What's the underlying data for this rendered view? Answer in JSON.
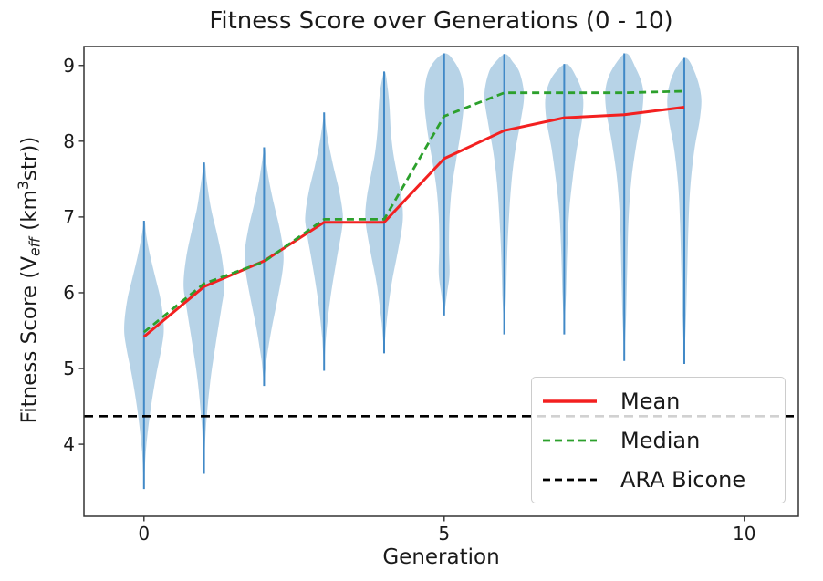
{
  "chart_data": {
    "type": "violin",
    "title": "Fitness Score over Generations (0 - 10)",
    "xlabel": "Generation",
    "ylabel": "Fitness Score (V_eff (km^3 str))",
    "ylabel_parts": [
      {
        "text": "Fitness Score (V"
      },
      {
        "text": "eff",
        "style": "sub"
      },
      {
        "text": " (km",
        "style": ""
      },
      {
        "text": "3",
        "style": "sup"
      },
      {
        "text": "str))",
        "style": ""
      }
    ],
    "x": [
      0,
      1,
      2,
      3,
      4,
      5,
      6,
      7,
      8,
      9
    ],
    "xlim": [
      -1.0,
      10.9
    ],
    "ylim": [
      3.05,
      9.25
    ],
    "x_ticks": [
      0,
      5,
      10
    ],
    "y_ticks": [
      4,
      5,
      6,
      7,
      8,
      9
    ],
    "grid": false,
    "legend_location": "lower right",
    "series": [
      {
        "name": "Mean",
        "style": "solid",
        "color": "#f32020",
        "values": [
          5.42,
          6.08,
          6.42,
          6.93,
          6.93,
          7.77,
          8.14,
          8.31,
          8.35,
          8.45
        ]
      },
      {
        "name": "Median",
        "style": "dashed",
        "color": "#2ca02c",
        "values": [
          5.48,
          6.12,
          6.41,
          6.97,
          6.97,
          8.33,
          8.64,
          8.64,
          8.64,
          8.66
        ]
      },
      {
        "name": "ARA Bicone",
        "style": "dashed",
        "color": "#000000",
        "value": 4.37
      }
    ],
    "violins": [
      {
        "gen": 0,
        "min": 3.41,
        "max": 6.95,
        "profile": [
          [
            3.41,
            0
          ],
          [
            3.9,
            0.03
          ],
          [
            4.4,
            0.1
          ],
          [
            4.9,
            0.2
          ],
          [
            5.3,
            0.3
          ],
          [
            5.55,
            0.33
          ],
          [
            5.9,
            0.28
          ],
          [
            6.2,
            0.19
          ],
          [
            6.5,
            0.1
          ],
          [
            6.75,
            0.04
          ],
          [
            6.95,
            0.01
          ]
        ]
      },
      {
        "gen": 1,
        "min": 3.61,
        "max": 7.72,
        "profile": [
          [
            3.61,
            0
          ],
          [
            4.2,
            0.03
          ],
          [
            4.8,
            0.1
          ],
          [
            5.3,
            0.19
          ],
          [
            5.8,
            0.29
          ],
          [
            6.1,
            0.34
          ],
          [
            6.45,
            0.3
          ],
          [
            6.8,
            0.21
          ],
          [
            7.1,
            0.12
          ],
          [
            7.45,
            0.05
          ],
          [
            7.72,
            0.01
          ]
        ]
      },
      {
        "gen": 2,
        "min": 4.77,
        "max": 7.92,
        "profile": [
          [
            4.77,
            0
          ],
          [
            5.1,
            0.04
          ],
          [
            5.5,
            0.12
          ],
          [
            5.9,
            0.22
          ],
          [
            6.3,
            0.31
          ],
          [
            6.55,
            0.32
          ],
          [
            6.85,
            0.26
          ],
          [
            7.15,
            0.17
          ],
          [
            7.45,
            0.09
          ],
          [
            7.7,
            0.04
          ],
          [
            7.92,
            0.01
          ]
        ]
      },
      {
        "gen": 3,
        "min": 4.97,
        "max": 8.38,
        "profile": [
          [
            4.97,
            0
          ],
          [
            5.4,
            0.03
          ],
          [
            5.9,
            0.1
          ],
          [
            6.4,
            0.2
          ],
          [
            6.85,
            0.3
          ],
          [
            7.05,
            0.31
          ],
          [
            7.35,
            0.25
          ],
          [
            7.65,
            0.16
          ],
          [
            7.95,
            0.08
          ],
          [
            8.2,
            0.03
          ],
          [
            8.38,
            0.01
          ]
        ]
      },
      {
        "gen": 4,
        "min": 5.2,
        "max": 8.92,
        "profile": [
          [
            5.2,
            0
          ],
          [
            5.6,
            0.04
          ],
          [
            6.1,
            0.12
          ],
          [
            6.55,
            0.23
          ],
          [
            6.95,
            0.31
          ],
          [
            7.25,
            0.29
          ],
          [
            7.55,
            0.22
          ],
          [
            7.85,
            0.15
          ],
          [
            8.15,
            0.11
          ],
          [
            8.45,
            0.09
          ],
          [
            8.7,
            0.06
          ],
          [
            8.92,
            0.01
          ]
        ]
      },
      {
        "gen": 5,
        "min": 5.7,
        "max": 9.16,
        "profile": [
          [
            5.7,
            0
          ],
          [
            6.0,
            0.05
          ],
          [
            6.25,
            0.09
          ],
          [
            6.6,
            0.08
          ],
          [
            7.0,
            0.09
          ],
          [
            7.4,
            0.13
          ],
          [
            7.8,
            0.21
          ],
          [
            8.2,
            0.29
          ],
          [
            8.55,
            0.33
          ],
          [
            8.85,
            0.29
          ],
          [
            9.05,
            0.17
          ],
          [
            9.16,
            0.02
          ]
        ]
      },
      {
        "gen": 6,
        "min": 5.45,
        "max": 9.15,
        "profile": [
          [
            5.45,
            0
          ],
          [
            5.95,
            0.03
          ],
          [
            6.5,
            0.05
          ],
          [
            7.0,
            0.08
          ],
          [
            7.45,
            0.12
          ],
          [
            7.85,
            0.18
          ],
          [
            8.25,
            0.27
          ],
          [
            8.6,
            0.33
          ],
          [
            8.9,
            0.26
          ],
          [
            9.05,
            0.14
          ],
          [
            9.15,
            0.02
          ]
        ]
      },
      {
        "gen": 7,
        "min": 5.45,
        "max": 9.02,
        "profile": [
          [
            5.45,
            0
          ],
          [
            6.0,
            0.03
          ],
          [
            6.55,
            0.05
          ],
          [
            7.05,
            0.08
          ],
          [
            7.5,
            0.14
          ],
          [
            7.9,
            0.21
          ],
          [
            8.3,
            0.3
          ],
          [
            8.6,
            0.31
          ],
          [
            8.85,
            0.2
          ],
          [
            9.02,
            0.03
          ]
        ]
      },
      {
        "gen": 8,
        "min": 5.1,
        "max": 9.16,
        "profile": [
          [
            5.1,
            0
          ],
          [
            5.7,
            0.03
          ],
          [
            6.35,
            0.05
          ],
          [
            6.95,
            0.07
          ],
          [
            7.5,
            0.12
          ],
          [
            8.0,
            0.21
          ],
          [
            8.4,
            0.3
          ],
          [
            8.7,
            0.31
          ],
          [
            8.95,
            0.2
          ],
          [
            9.16,
            0.03
          ]
        ]
      },
      {
        "gen": 9,
        "min": 5.06,
        "max": 9.1,
        "profile": [
          [
            5.06,
            0
          ],
          [
            5.7,
            0.03
          ],
          [
            6.3,
            0.05
          ],
          [
            6.9,
            0.07
          ],
          [
            7.4,
            0.1
          ],
          [
            7.9,
            0.17
          ],
          [
            8.3,
            0.26
          ],
          [
            8.6,
            0.28
          ],
          [
            8.9,
            0.18
          ],
          [
            9.1,
            0.02
          ]
        ]
      }
    ],
    "colors": {
      "violin_fill": "rgba(31,119,180,0.32)",
      "violin_line": "#4189c7",
      "mean": "#f32020",
      "median": "#2ca02c",
      "ara": "#000000",
      "text": "#1a1a1a",
      "spine": "#333333"
    }
  }
}
